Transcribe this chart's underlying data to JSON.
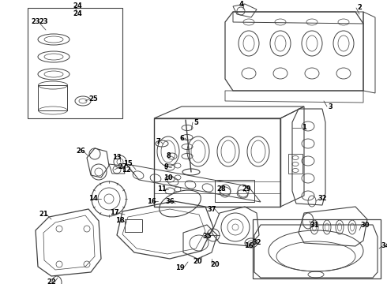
{
  "bg_color": "#ffffff",
  "line_color": "#404040",
  "label_color": "#000000",
  "figsize": [
    4.9,
    3.6
  ],
  "dpi": 100,
  "lw": 0.75
}
